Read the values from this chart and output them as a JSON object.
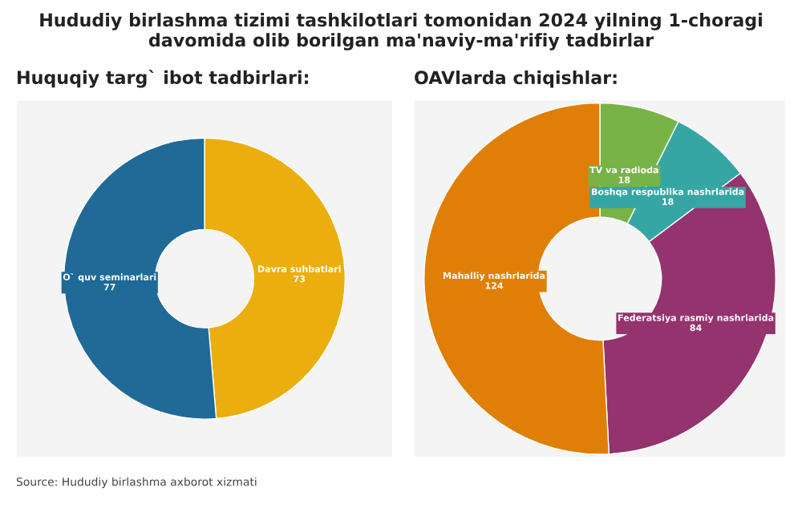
{
  "chart_data": [
    {
      "type": "donut",
      "title": "Hududiy birlashma tizimi tashkilotlari tomonidan 2024 yilning 1-choragi davomida olib borilgan ma'naviy-ma'rifiy tadbirlar",
      "subtitle": "Huquqiy targ` ibot tadbirlari:",
      "categories": [
        "Davra suhbatlari",
        "O` quv seminarlari"
      ],
      "values": [
        73,
        77
      ],
      "colors": [
        "#ecae0f",
        "#1f6a96"
      ],
      "data_labels": true,
      "annotations": [
        "Source: Hududiy birlashma axborot xizmati"
      ]
    },
    {
      "type": "donut",
      "subtitle": "OAVlarda chiqishlar:",
      "categories": [
        "TV va radioda",
        "Boshqa respublika nashrlarida",
        "Federatsiya rasmiy nashrlarida",
        "Mahalliy nashrlarida"
      ],
      "values": [
        18,
        18,
        84,
        124
      ],
      "colors": [
        "#78b348",
        "#36a6a4",
        "#94336d",
        "#e07f05"
      ],
      "data_labels": true
    }
  ]
}
